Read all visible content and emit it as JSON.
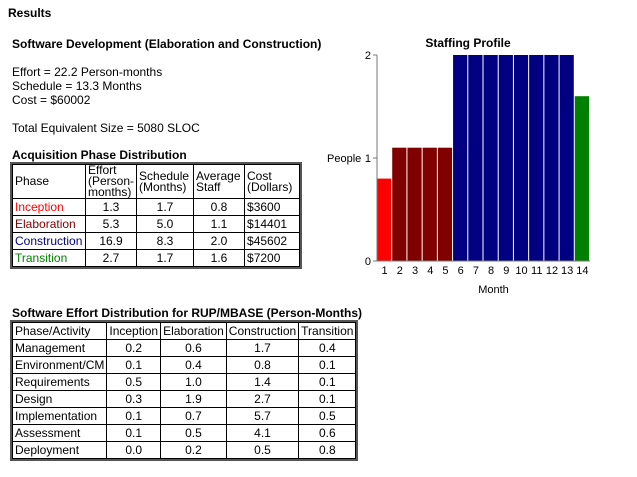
{
  "results_title": "Results",
  "section_title": "Software Development (Elaboration and Construction)",
  "metrics": {
    "effort": "Effort = 22.2 Person-months",
    "schedule": "Schedule = 13.3 Months",
    "cost": "Cost = $60002"
  },
  "total_size": "Total Equivalent Size = 5080 SLOC",
  "acquisition": {
    "title": "Acquisition Phase Distribution",
    "headers": [
      "Phase",
      "Effort (Person-months)",
      "Schedule (Months)",
      "Average Staff",
      "Cost (Dollars)"
    ],
    "header_lines": [
      [
        "Phase"
      ],
      [
        "Effort",
        "(Person-",
        "months)"
      ],
      [
        "Schedule",
        "(Months)"
      ],
      [
        "Average",
        "Staff"
      ],
      [
        "Cost",
        "(Dollars)"
      ]
    ],
    "rows": [
      {
        "phase": "Inception",
        "color": "#ff0000",
        "effort": "1.3",
        "schedule": "1.7",
        "staff": "0.8",
        "cost": "$3600"
      },
      {
        "phase": "Elaboration",
        "color": "#800000",
        "effort": "5.3",
        "schedule": "5.0",
        "staff": "1.1",
        "cost": "$14401"
      },
      {
        "phase": "Construction",
        "color": "#000080",
        "effort": "16.9",
        "schedule": "8.3",
        "staff": "2.0",
        "cost": "$45602"
      },
      {
        "phase": "Transition",
        "color": "#008000",
        "effort": "2.7",
        "schedule": "1.7",
        "staff": "1.6",
        "cost": "$7200"
      }
    ]
  },
  "effort_distribution": {
    "title": "Software Effort Distribution for RUP/MBASE (Person-Months)",
    "headers": [
      "Phase/Activity",
      "Inception",
      "Elaboration",
      "Construction",
      "Transition"
    ],
    "rows": [
      [
        "Management",
        "0.2",
        "0.6",
        "1.7",
        "0.4"
      ],
      [
        "Environment/CM",
        "0.1",
        "0.4",
        "0.8",
        "0.1"
      ],
      [
        "Requirements",
        "0.5",
        "1.0",
        "1.4",
        "0.1"
      ],
      [
        "Design",
        "0.3",
        "1.9",
        "2.7",
        "0.1"
      ],
      [
        "Implementation",
        "0.1",
        "0.7",
        "5.7",
        "0.5"
      ],
      [
        "Assessment",
        "0.1",
        "0.5",
        "4.1",
        "0.6"
      ],
      [
        "Deployment",
        "0.0",
        "0.2",
        "0.5",
        "0.8"
      ]
    ]
  },
  "chart_data": {
    "type": "bar",
    "title": "Staffing Profile",
    "xlabel": "Month",
    "ylabel": "People",
    "ylim": [
      0,
      2
    ],
    "yticks": [
      0,
      1,
      2
    ],
    "categories": [
      "1",
      "2",
      "3",
      "4",
      "5",
      "6",
      "7",
      "8",
      "9",
      "10",
      "11",
      "12",
      "13",
      "14"
    ],
    "values": [
      0.8,
      1.1,
      1.1,
      1.1,
      1.1,
      2.0,
      2.0,
      2.0,
      2.0,
      2.0,
      2.0,
      2.0,
      2.0,
      1.6
    ],
    "bar_colors": [
      "#ff0000",
      "#800000",
      "#800000",
      "#800000",
      "#800000",
      "#000080",
      "#000080",
      "#000080",
      "#000080",
      "#000080",
      "#000080",
      "#000080",
      "#000080",
      "#008000"
    ],
    "grid": false,
    "legend": "none"
  }
}
